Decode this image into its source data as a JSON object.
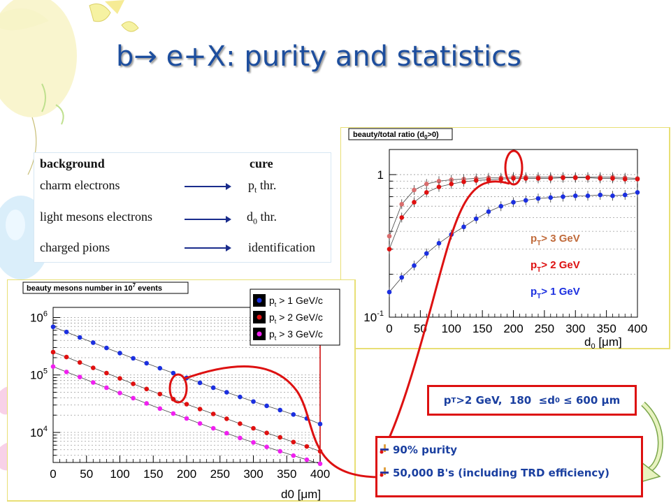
{
  "title": {
    "prefix": "b",
    "arrow": "→",
    "suffix": " e+X: purity and statistics"
  },
  "table": {
    "header": {
      "background": "background",
      "cure": "cure"
    },
    "rows": [
      {
        "bg": "charm electrons",
        "cure_main": "p",
        "cure_sub": "t",
        "cure_rest": " thr."
      },
      {
        "bg": "light mesons electrons",
        "cure_main": "d",
        "cure_sub": "0",
        "cure_rest": " thr."
      },
      {
        "bg": "charged pions",
        "cure_main": "identification",
        "cure_sub": "",
        "cure_rest": ""
      }
    ]
  },
  "colors": {
    "blue": "#1b2fe0",
    "red": "#e01010",
    "pink": "#d96d6d",
    "magenta": "#f020f0",
    "accent_red": "#dd1111"
  },
  "chart_data": [
    {
      "type": "line",
      "title": "beauty mesons number in 10⁷ events",
      "title_text": "beauty mesons number in 10",
      "title_sup": "7",
      "title_tail": " events",
      "xlabel": "d0 [μm]",
      "xlim": [
        0,
        400
      ],
      "ylim": [
        3000,
        1500000
      ],
      "yscale": "log",
      "x_ticks": [
        0,
        50,
        100,
        150,
        200,
        250,
        300,
        350,
        400
      ],
      "y_ticks": [
        {
          "value": 1000000,
          "label": "10",
          "sup": "6"
        },
        {
          "value": 100000,
          "label": "10",
          "sup": "5"
        },
        {
          "value": 10000,
          "label": "10",
          "sup": "4"
        }
      ],
      "legend": "top-right",
      "x": [
        0,
        20,
        40,
        60,
        80,
        100,
        120,
        140,
        160,
        180,
        200,
        220,
        240,
        260,
        280,
        300,
        320,
        340,
        360,
        380,
        400
      ],
      "series": [
        {
          "name": "p_t > 1 GeV/c",
          "leg_main": "p",
          "leg_sub": "t",
          "leg_rest": " > 1 GeV/c",
          "color": "#1b2fe0",
          "values": [
            690000,
            560000,
            450000,
            365000,
            295000,
            240000,
            195000,
            160000,
            131000,
            108000,
            89000,
            73000,
            60000,
            50000,
            41500,
            34500,
            29000,
            24500,
            20500,
            17500,
            14000
          ]
        },
        {
          "name": "p_t > 2 GeV/c",
          "leg_main": "p",
          "leg_sub": "t",
          "leg_rest": " > 2 GeV/c",
          "color": "#e01010",
          "values": [
            250000,
            205000,
            165000,
            133000,
            108000,
            87000,
            70000,
            57000,
            46500,
            38000,
            31000,
            25500,
            21000,
            17300,
            14200,
            11800,
            9800,
            8200,
            6800,
            5700,
            4700
          ]
        },
        {
          "name": "p_t > 3 GeV/c",
          "leg_main": "p",
          "leg_sub": "t",
          "leg_rest": " > 3 GeV/c",
          "color": "#f020f0",
          "values": [
            140000,
            113000,
            92000,
            74000,
            60000,
            48500,
            39500,
            32000,
            26000,
            21300,
            17500,
            14300,
            11800,
            9700,
            8000,
            6700,
            5600,
            4700,
            3950,
            3350,
            2850
          ]
        }
      ]
    },
    {
      "type": "line",
      "title": "beauty/total ratio (d0>0)",
      "title_text": "beauty/total ratio (d",
      "title_sub": "0",
      "title_tail": ">0)",
      "xlabel": "d0 [μm]",
      "xlim": [
        0,
        400
      ],
      "ylim": [
        0.1,
        1.5
      ],
      "yscale": "log",
      "x_ticks": [
        0,
        50,
        100,
        150,
        200,
        250,
        300,
        350,
        400
      ],
      "y_ticks": [
        {
          "value": 1,
          "label": "1",
          "sup": ""
        },
        {
          "value": 0.1,
          "label": "10",
          "sup": "-1"
        }
      ],
      "x": [
        0,
        20,
        40,
        60,
        80,
        100,
        120,
        140,
        160,
        180,
        200,
        220,
        240,
        260,
        280,
        300,
        320,
        340,
        360,
        380,
        400
      ],
      "series": [
        {
          "name": "pT> 3 GeV",
          "color": "#d96d6d",
          "values": [
            0.37,
            0.62,
            0.78,
            0.86,
            0.9,
            0.92,
            0.93,
            0.94,
            0.95,
            0.95,
            0.96,
            0.96,
            0.96,
            0.96,
            0.96,
            0.96,
            0.96,
            0.96,
            0.96,
            0.95,
            0.94
          ]
        },
        {
          "name": "pT> 2 GeV",
          "color": "#e01010",
          "values": [
            0.3,
            0.5,
            0.64,
            0.75,
            0.82,
            0.86,
            0.89,
            0.91,
            0.92,
            0.93,
            0.94,
            0.94,
            0.94,
            0.94,
            0.95,
            0.95,
            0.95,
            0.94,
            0.94,
            0.93,
            0.93
          ]
        },
        {
          "name": "pT> 1 GeV",
          "color": "#1b2fe0",
          "values": [
            0.15,
            0.19,
            0.23,
            0.28,
            0.33,
            0.38,
            0.43,
            0.49,
            0.55,
            0.6,
            0.64,
            0.66,
            0.68,
            0.69,
            0.7,
            0.71,
            0.71,
            0.72,
            0.71,
            0.72,
            0.75
          ]
        }
      ],
      "labels": [
        {
          "main": "p",
          "sub": "T",
          "rest": "> 3 GeV",
          "color": "#c06a3a"
        },
        {
          "main": "p",
          "sub": "T",
          "rest": "> 2 GeV",
          "color": "#dd1010"
        },
        {
          "main": "p",
          "sub": "T",
          "rest": "> 1 GeV",
          "color": "#1b2fe0"
        }
      ]
    }
  ],
  "condition": {
    "p": "p",
    "p_sub": "T",
    "text1": ">2 GeV,  180  ",
    "le1": "≤",
    "d": " d",
    "d_sub": "0",
    "le2": " ≤",
    "text2": " 600 ",
    "mu": "μ",
    "unit": "m"
  },
  "results": [
    {
      "text": "90% purity"
    },
    {
      "text": "50,000 B's (including TRD efficiency)"
    }
  ]
}
